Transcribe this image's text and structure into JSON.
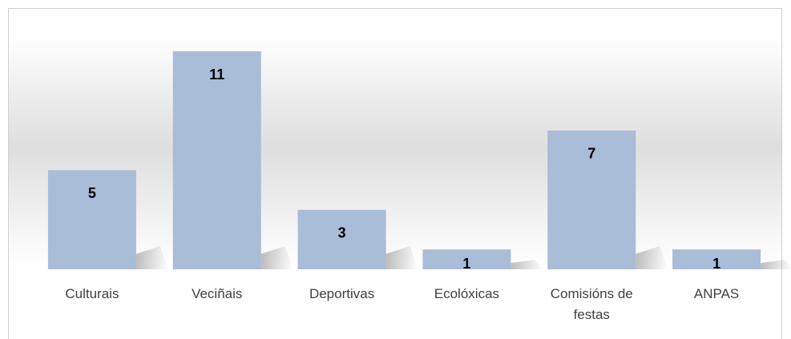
{
  "chart_data": {
    "type": "bar",
    "categories": [
      "Culturais",
      "Veciñais",
      "Deportivas",
      "Ecolóxicas",
      "Comisións de festas",
      "ANPAS"
    ],
    "values": [
      5,
      11,
      3,
      1,
      7,
      1
    ],
    "color": "#a9bcd8",
    "ylim": [
      0,
      11
    ]
  }
}
